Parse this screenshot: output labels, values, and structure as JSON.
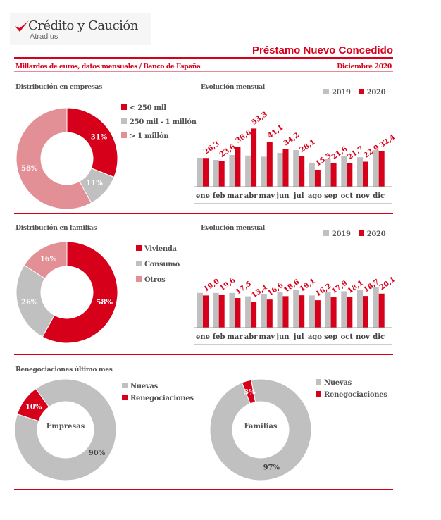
{
  "header": {
    "logo_name": "Crédito y Caución",
    "logo_sub": "Atradius",
    "report_title": "Préstamo Nuevo Concedido",
    "subtitle_left": "Millardos de euros, datos mensuales / Banco de España",
    "subtitle_right": "Diciembre 2020"
  },
  "colors": {
    "red": "#d7001a",
    "gray": "#c0c0c0",
    "pink": "#e28f95",
    "line": "#c8102e"
  },
  "sections": {
    "empresas_title": "Distribución en empresas",
    "evol1_title": "Evolución mensual",
    "familias_title": "Distribución en familias",
    "evol2_title": "Evolución mensual",
    "reneg_title": "Renegociaciones último mes"
  },
  "chart_data": [
    {
      "type": "pie",
      "title": "Distribución en empresas",
      "categories": [
        "< 250 mil",
        "250 mil - 1 millón",
        "> 1 millón"
      ],
      "values": [
        31,
        11,
        58
      ],
      "labels": [
        "31%",
        "11%",
        "58%"
      ],
      "colors": [
        "#d7001a",
        "#c0c0c0",
        "#e28f95"
      ]
    },
    {
      "type": "bar",
      "title": "Evolución mensual",
      "categories": [
        "ene",
        "feb",
        "mar",
        "abr",
        "may",
        "jun",
        "jul",
        "ago",
        "sep",
        "oct",
        "nov",
        "dic"
      ],
      "series": [
        {
          "name": "2019",
          "values": [
            26.5,
            24.5,
            29.0,
            28.5,
            27.5,
            31.0,
            33.5,
            22.0,
            25.5,
            28.0,
            27.0,
            33.5
          ]
        },
        {
          "name": "2020",
          "values": [
            26.3,
            23.6,
            36.6,
            53.3,
            41.1,
            34.2,
            28.1,
            15.5,
            21.6,
            21.7,
            22.9,
            32.4
          ]
        }
      ],
      "data_labels": [
        "26,3",
        "23,6",
        "36,6",
        "53,3",
        "41,1",
        "34,2",
        "28,1",
        "15,5",
        "21,6",
        "21,7",
        "22,9",
        "32,4"
      ],
      "ylim": [
        0,
        60
      ]
    },
    {
      "type": "pie",
      "title": "Distribución en familias",
      "categories": [
        "Vivienda",
        "Consumo",
        "Otros"
      ],
      "values": [
        58,
        26,
        16
      ],
      "labels": [
        "58%",
        "26%",
        "16%"
      ],
      "colors": [
        "#d7001a",
        "#c0c0c0",
        "#e28f95"
      ]
    },
    {
      "type": "bar",
      "title": "Evolución mensual",
      "categories": [
        "ene",
        "feb",
        "mar",
        "abr",
        "may",
        "jun",
        "jul",
        "ago",
        "sep",
        "oct",
        "nov",
        "dic"
      ],
      "series": [
        {
          "name": "2019",
          "values": [
            20.5,
            20.5,
            20.5,
            18.5,
            20.0,
            21.0,
            22.5,
            19.0,
            21.0,
            21.5,
            22.5,
            24.0
          ]
        },
        {
          "name": "2020",
          "values": [
            19.0,
            19.6,
            17.5,
            15.4,
            16.6,
            18.6,
            19.1,
            16.2,
            17.9,
            18.1,
            18.7,
            20.1
          ]
        }
      ],
      "data_labels": [
        "19,0",
        "19,6",
        "17,5",
        "15,4",
        "16,6",
        "18,6",
        "19,1",
        "16,2",
        "17,9",
        "18,1",
        "18,7",
        "20,1"
      ],
      "ylim": [
        0,
        28
      ]
    },
    {
      "type": "pie",
      "title": "Empresas",
      "categories": [
        "Nuevas",
        "Renegociaciones"
      ],
      "values": [
        90,
        10
      ],
      "labels": [
        "90%",
        "10%"
      ],
      "colors": [
        "#c0c0c0",
        "#d7001a"
      ]
    },
    {
      "type": "pie",
      "title": "Familias",
      "categories": [
        "Nuevas",
        "Renegociaciones"
      ],
      "values": [
        97,
        3
      ],
      "labels": [
        "97%",
        "3%"
      ],
      "colors": [
        "#c0c0c0",
        "#d7001a"
      ]
    }
  ]
}
